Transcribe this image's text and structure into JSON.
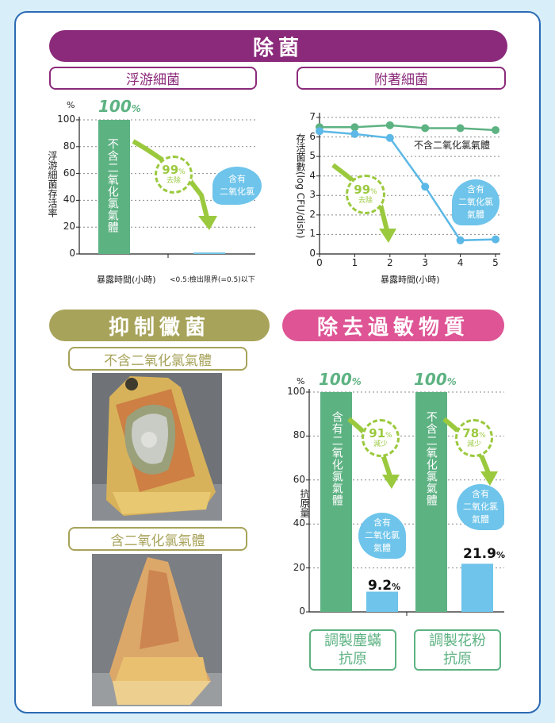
{
  "sections": {
    "sterilization": "除菌",
    "airborne": "浮游細菌",
    "attached": "附著細菌",
    "mold": "抑制黴菌",
    "allergen": "除去過敏物質"
  },
  "airborne_chart": {
    "pct_symbol": "%",
    "yticks": [
      "100",
      "80",
      "60",
      "40",
      "20",
      "0"
    ],
    "ylabel": "浮游細菌存活率",
    "bar_text": "不含二氧化氯氣體",
    "top_label": "100",
    "top_unit": "%",
    "reduction_value": "99",
    "reduction_unit": "%",
    "reduction_word": "去除",
    "bubble": [
      "含有",
      "二氧化氯"
    ],
    "xlabel": "暴露時間(小時)",
    "note": "<0.5:檢出限界(=0.5)以下"
  },
  "attached_chart": {
    "ylabel": "存活菌數(log CFU/dish)",
    "xlabel": "暴露時間(小時)",
    "yticks": [
      "7",
      "6",
      "5",
      "4",
      "3",
      "2",
      "1",
      "0"
    ],
    "xticks": [
      "0",
      "1",
      "2",
      "3",
      "4",
      "5"
    ],
    "series_label": "不含二氧化氯氣體",
    "reduction_value": "99",
    "reduction_unit": "%",
    "reduction_word": "去除",
    "bubble": [
      "含有",
      "二氧化氯",
      "氣體"
    ]
  },
  "mold_panel": {
    "label_without": "不含二氧化氯氣體",
    "label_with": "含二氧化氯氣體"
  },
  "allergen_chart": {
    "pct_symbol": "%",
    "yticks": [
      "100",
      "80",
      "60",
      "40",
      "20",
      "0"
    ],
    "ylabel": "抗原量",
    "top_label_1": "100",
    "top_label_2": "100",
    "top_unit": "%",
    "bar1_text": "含有二氧化氯氣體",
    "bar2_text": "不含二氧化氯氣體",
    "reduction1_value": "91",
    "reduction2_value": "78",
    "reduction_unit": "%",
    "reduction_word": "減少",
    "bubble": [
      "含有",
      "二氧化氯",
      "氣體"
    ],
    "value1": "9.2",
    "value2": "21.9",
    "value_unit": "%",
    "cat1": [
      "調製塵蟎",
      "抗原"
    ],
    "cat2": [
      "調製花粉",
      "抗原"
    ]
  },
  "chart_data": [
    {
      "type": "bar",
      "title": "浮游細菌",
      "ylabel": "浮游細菌存活率",
      "xlabel": "暴露時間(小時)",
      "categories": [
        "不含二氧化氯氣體",
        "含有二氧化氯"
      ],
      "values": [
        100,
        0.5
      ],
      "ylim": [
        0,
        100
      ],
      "grid": true
    },
    {
      "type": "line",
      "title": "附著細菌",
      "xlabel": "暴露時間(小時)",
      "ylabel": "存活菌數(log CFU/dish)",
      "x": [
        0,
        1,
        2,
        3,
        4,
        5
      ],
      "series": [
        {
          "name": "不含二氧化氯氣體",
          "values": [
            6.5,
            6.5,
            6.6,
            6.45,
            6.45,
            6.35
          ]
        },
        {
          "name": "含有二氧化氯氣體",
          "values": [
            6.3,
            6.15,
            5.95,
            3.45,
            0.7,
            0.75
          ]
        }
      ],
      "xlim": [
        0,
        5
      ],
      "ylim": [
        0,
        7
      ],
      "grid": true
    },
    {
      "type": "bar",
      "title": "除去過敏物質",
      "ylabel": "抗原量",
      "categories": [
        "調製塵蟎抗原",
        "調製花粉抗原"
      ],
      "series": [
        {
          "name": "不含二氧化氯氣體",
          "values": [
            100,
            100
          ]
        },
        {
          "name": "含有二氧化氯氣體",
          "values": [
            9.2,
            21.9
          ]
        }
      ],
      "ylim": [
        0,
        100
      ],
      "grid": true
    }
  ],
  "colors": {
    "purple": "#8b2a7a",
    "olive": "#a7a35a",
    "pink": "#de5494",
    "green_bar": "#5db282",
    "light_blue": "#6ec4ea",
    "arrow_green": "#9bc93e",
    "blue_line": "#5cb8e6"
  }
}
